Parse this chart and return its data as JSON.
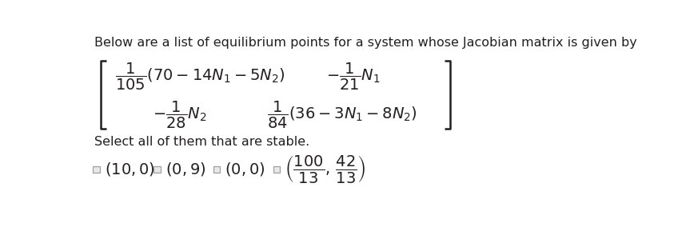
{
  "title_text": "Below are a list of equilibrium points for a system whose Jacobian matrix is given by",
  "select_text": "Select all of them that are stable.",
  "bg_color": "#ffffff",
  "text_color": "#231f20",
  "title_fontsize": 11.5,
  "matrix_fontsize": 14,
  "select_fontsize": 11.5,
  "eq_fontsize": 14,
  "top_left_expr": "$\\dfrac{1}{105}(70 - 14N_1 - 5N_2)$",
  "top_right_expr": "$-\\dfrac{1}{21}N_1$",
  "bottom_left_expr": "$-\\dfrac{1}{28}N_2$",
  "bottom_right_expr": "$\\dfrac{1}{84}(36 - 3N_1 - 8N_2)$",
  "eq1": "$(10,0)$",
  "eq2": "$(0,9)$",
  "eq3": "$(0,0)$",
  "eq4": "$\\left(\\dfrac{100}{13},\\,\\dfrac{42}{13}\\right)$",
  "bracket_color": "#231f20",
  "bracket_lw": 1.8
}
